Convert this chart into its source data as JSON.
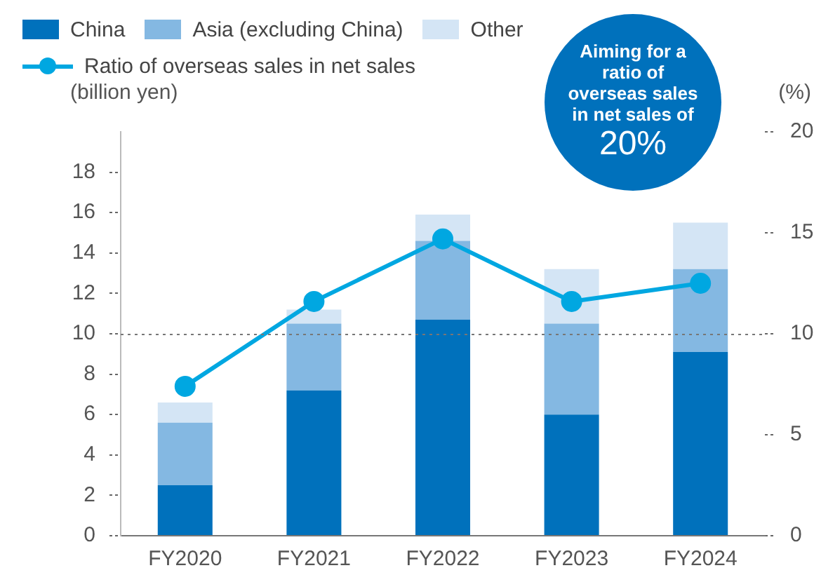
{
  "chart_data": {
    "type": "bar",
    "stacked": true,
    "ylabel": "(billion yen)",
    "y2label": "(%)",
    "categories": [
      "FY2020",
      "FY2021",
      "FY2022",
      "FY2023",
      "FY2024"
    ],
    "series": [
      {
        "name": "China",
        "color": "#0071bc",
        "values": [
          2.5,
          7.2,
          10.7,
          6.0,
          9.1
        ]
      },
      {
        "name": "Asia (excluding China)",
        "color": "#84b8e2",
        "values": [
          3.1,
          3.3,
          3.9,
          4.5,
          4.1
        ]
      },
      {
        "name": "Other",
        "color": "#d4e5f5",
        "values": [
          1.0,
          0.7,
          1.3,
          2.7,
          2.3
        ]
      },
      {
        "name": "Ratio of overseas sales in net sales",
        "type": "line",
        "axis": "y2",
        "color": "#00a7e1",
        "marker": "circle",
        "values": [
          7.4,
          11.6,
          14.7,
          11.6,
          12.5
        ]
      }
    ],
    "ylim": [
      0,
      20
    ],
    "yticks": [
      0,
      2,
      4,
      6,
      8,
      10,
      12,
      14,
      16,
      18
    ],
    "y2lim": [
      0,
      20
    ],
    "y2ticks": [
      0,
      5,
      10,
      15,
      20
    ],
    "ref_lines": [
      {
        "axis": "y",
        "value": 10,
        "line_style": "dotted",
        "color": "#777777"
      }
    ],
    "grid": false,
    "legend": "top left",
    "annotations": [
      "Aiming for a ratio of overseas sales in net sales of",
      "20%"
    ]
  }
}
